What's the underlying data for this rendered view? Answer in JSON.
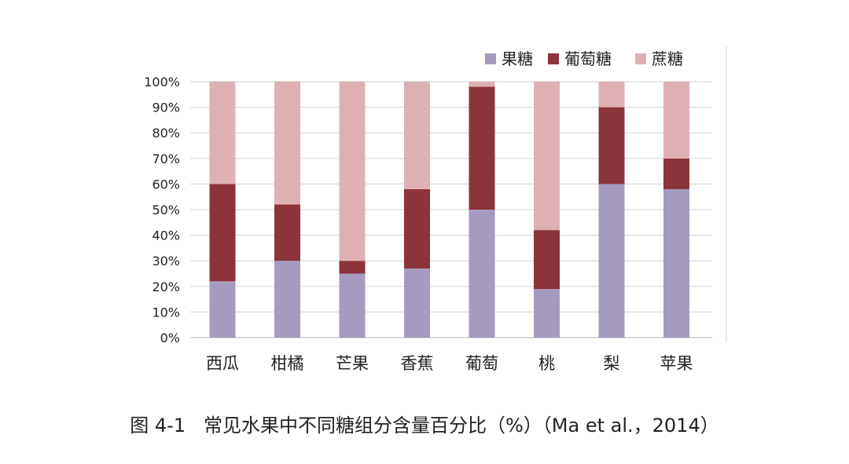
{
  "chart_data": {
    "type": "bar",
    "stacked": true,
    "categories": [
      "西瓜",
      "柑橘",
      "芒果",
      "香蕉",
      "葡萄",
      "桃",
      "梨",
      "苹果"
    ],
    "series": [
      {
        "name": "果糖",
        "color": "#a59bbe",
        "values": [
          22,
          30,
          25,
          27,
          50,
          19,
          60,
          58
        ]
      },
      {
        "name": "葡萄糖",
        "color": "#8b343b",
        "values": [
          38,
          22,
          5,
          31,
          48,
          23,
          30,
          12
        ]
      },
      {
        "name": "蔗糖",
        "color": "#dfb0b3",
        "values": [
          40,
          48,
          70,
          42,
          2,
          58,
          10,
          30
        ]
      }
    ],
    "ylim": [
      0,
      100
    ],
    "yticks": [
      "0%",
      "10%",
      "20%",
      "30%",
      "40%",
      "50%",
      "60%",
      "70%",
      "80%",
      "90%",
      "100%"
    ],
    "grid": true,
    "legend_position": "top-right"
  },
  "caption": "图 4-1   常见水果中不同糖组分含量百分比（%）（Ma et al.，2014）"
}
